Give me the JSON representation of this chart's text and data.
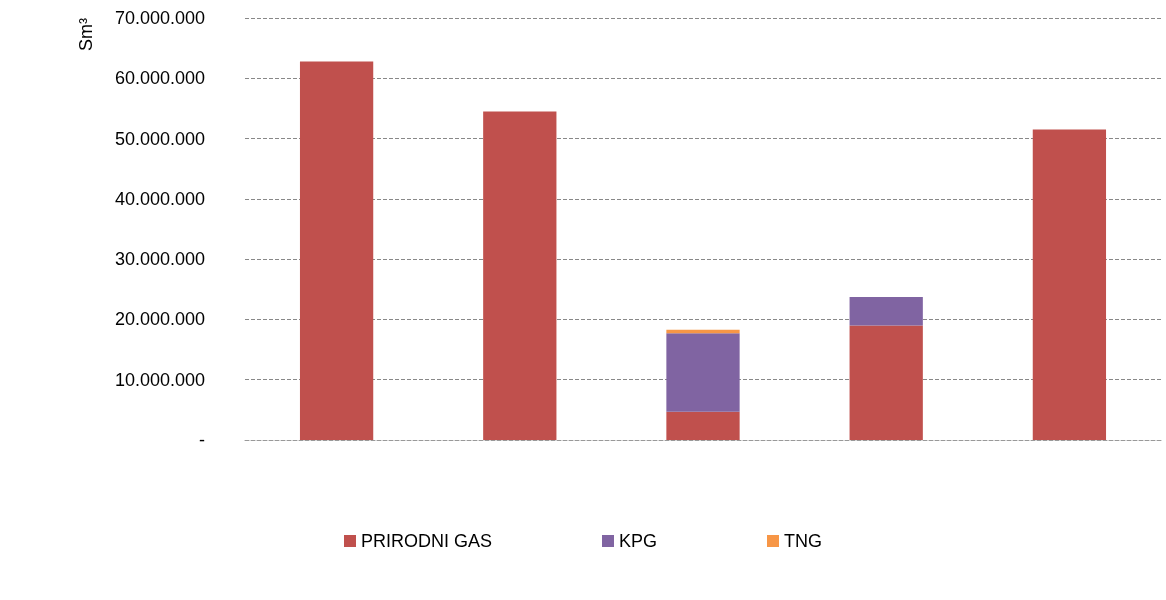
{
  "chart_data": {
    "type": "bar",
    "stacked": true,
    "ylabel": "Sm³",
    "categories": [
      null,
      null,
      null,
      null,
      null
    ],
    "series": [
      {
        "name": "PRIRODNI GAS",
        "color": "#c0504d",
        "values": [
          62800000,
          54500000,
          4700000,
          19000000,
          51500000
        ]
      },
      {
        "name": "KPG",
        "color": "#8064a2",
        "values": [
          0,
          0,
          13000000,
          4700000,
          0
        ]
      },
      {
        "name": "TNG",
        "color": "#f79646",
        "values": [
          0,
          0,
          600000,
          0,
          0
        ]
      }
    ],
    "ylim": [
      0,
      70000000
    ],
    "yticks": [
      {
        "value": 0,
        "label": "-"
      },
      {
        "value": 10000000,
        "label": "10.000.000"
      },
      {
        "value": 20000000,
        "label": "20.000.000"
      },
      {
        "value": 30000000,
        "label": "30.000.000"
      },
      {
        "value": 40000000,
        "label": "40.000.000"
      },
      {
        "value": 50000000,
        "label": "50.000.000"
      },
      {
        "value": 60000000,
        "label": "60.000.000"
      },
      {
        "value": 70000000,
        "label": "70.000.000"
      }
    ],
    "grid": "y",
    "legend": "bottom"
  }
}
